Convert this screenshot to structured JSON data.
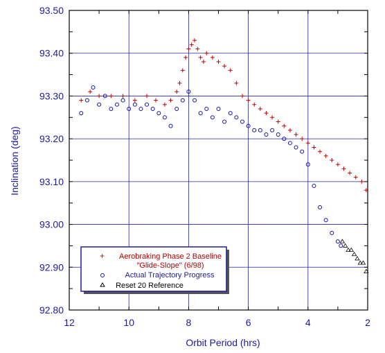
{
  "chart_data": {
    "type": "scatter",
    "title": "",
    "xlabel": "Orbit Period (hrs)",
    "ylabel": "Inclination (deg)",
    "xlim": [
      12,
      2
    ],
    "ylim": [
      92.8,
      93.5
    ],
    "x_reversed": true,
    "grid": true,
    "legend_position": "bottom-left",
    "x_ticks": [
      "12",
      "10",
      "8",
      "6",
      "4",
      "2"
    ],
    "y_ticks": [
      "93.50",
      "93.40",
      "93.30",
      "93.20",
      "93.10",
      "93.00",
      "92.90",
      "92.80"
    ],
    "colors": {
      "baseline": "#c00000",
      "actual": "#1010b0",
      "reset": "#000000",
      "axis_text": "#1a1aa0",
      "grid": "#2222aa"
    },
    "series": [
      {
        "name": "Aerobraking Phase 2 Baseline\n\"Glide-Slope\" (6/98)",
        "legend_line1": "Aerobraking Phase 2 Baseline",
        "legend_line2": "\"Glide-Slope\" (6/98)",
        "marker": "plus",
        "points": [
          [
            11.6,
            93.29
          ],
          [
            11.3,
            93.31
          ],
          [
            11.0,
            93.3
          ],
          [
            10.6,
            93.3
          ],
          [
            10.2,
            93.3
          ],
          [
            9.8,
            93.29
          ],
          [
            9.4,
            93.3
          ],
          [
            9.1,
            93.29
          ],
          [
            8.8,
            93.28
          ],
          [
            8.6,
            93.29
          ],
          [
            8.4,
            93.31
          ],
          [
            8.3,
            93.33
          ],
          [
            8.2,
            93.36
          ],
          [
            8.1,
            93.39
          ],
          [
            8.0,
            93.41
          ],
          [
            7.9,
            93.42
          ],
          [
            7.8,
            93.43
          ],
          [
            7.7,
            93.41
          ],
          [
            7.6,
            93.39
          ],
          [
            7.5,
            93.38
          ],
          [
            7.4,
            93.4
          ],
          [
            7.2,
            93.39
          ],
          [
            7.0,
            93.38
          ],
          [
            6.8,
            93.37
          ],
          [
            6.6,
            93.36
          ],
          [
            6.4,
            93.33
          ],
          [
            6.2,
            93.3
          ],
          [
            6.0,
            93.29
          ],
          [
            5.8,
            93.28
          ],
          [
            5.6,
            93.27
          ],
          [
            5.4,
            93.26
          ],
          [
            5.2,
            93.25
          ],
          [
            5.0,
            93.24
          ],
          [
            4.8,
            93.23
          ],
          [
            4.6,
            93.22
          ],
          [
            4.4,
            93.21
          ],
          [
            4.2,
            93.2
          ],
          [
            4.0,
            93.19
          ],
          [
            3.8,
            93.18
          ],
          [
            3.6,
            93.17
          ],
          [
            3.4,
            93.16
          ],
          [
            3.2,
            93.15
          ],
          [
            3.0,
            93.14
          ],
          [
            2.8,
            93.13
          ],
          [
            2.6,
            93.12
          ],
          [
            2.4,
            93.11
          ],
          [
            2.2,
            93.1
          ],
          [
            2.05,
            93.08
          ]
        ]
      },
      {
        "name": "Actual Trajectory Progress",
        "marker": "circle",
        "points": [
          [
            11.6,
            93.26
          ],
          [
            11.4,
            93.29
          ],
          [
            11.2,
            93.32
          ],
          [
            11.0,
            93.28
          ],
          [
            10.8,
            93.3
          ],
          [
            10.6,
            93.27
          ],
          [
            10.4,
            93.28
          ],
          [
            10.2,
            93.29
          ],
          [
            10.0,
            93.27
          ],
          [
            9.8,
            93.28
          ],
          [
            9.6,
            93.27
          ],
          [
            9.4,
            93.28
          ],
          [
            9.2,
            93.27
          ],
          [
            9.0,
            93.26
          ],
          [
            8.8,
            93.25
          ],
          [
            8.6,
            93.23
          ],
          [
            8.4,
            93.27
          ],
          [
            8.2,
            93.29
          ],
          [
            8.0,
            93.31
          ],
          [
            7.8,
            93.29
          ],
          [
            7.6,
            93.26
          ],
          [
            7.4,
            93.27
          ],
          [
            7.2,
            93.25
          ],
          [
            7.0,
            93.27
          ],
          [
            6.8,
            93.24
          ],
          [
            6.6,
            93.26
          ],
          [
            6.4,
            93.25
          ],
          [
            6.2,
            93.24
          ],
          [
            6.0,
            93.23
          ],
          [
            5.8,
            93.22
          ],
          [
            5.6,
            93.22
          ],
          [
            5.4,
            93.21
          ],
          [
            5.2,
            93.22
          ],
          [
            5.0,
            93.21
          ],
          [
            4.8,
            93.2
          ],
          [
            4.6,
            93.19
          ],
          [
            4.4,
            93.18
          ],
          [
            4.2,
            93.17
          ],
          [
            4.0,
            93.14
          ],
          [
            3.8,
            93.09
          ],
          [
            3.6,
            93.04
          ],
          [
            3.4,
            93.01
          ],
          [
            3.2,
            92.98
          ],
          [
            3.0,
            92.96
          ],
          [
            2.9,
            92.95
          ]
        ]
      },
      {
        "name": "Reset 20 Reference",
        "marker": "triangle",
        "points": [
          [
            2.85,
            92.96
          ],
          [
            2.75,
            92.95
          ],
          [
            2.65,
            92.94
          ],
          [
            2.55,
            92.94
          ],
          [
            2.45,
            92.93
          ],
          [
            2.35,
            92.92
          ],
          [
            2.25,
            92.91
          ],
          [
            2.15,
            92.91
          ],
          [
            2.05,
            92.89
          ]
        ]
      }
    ]
  }
}
